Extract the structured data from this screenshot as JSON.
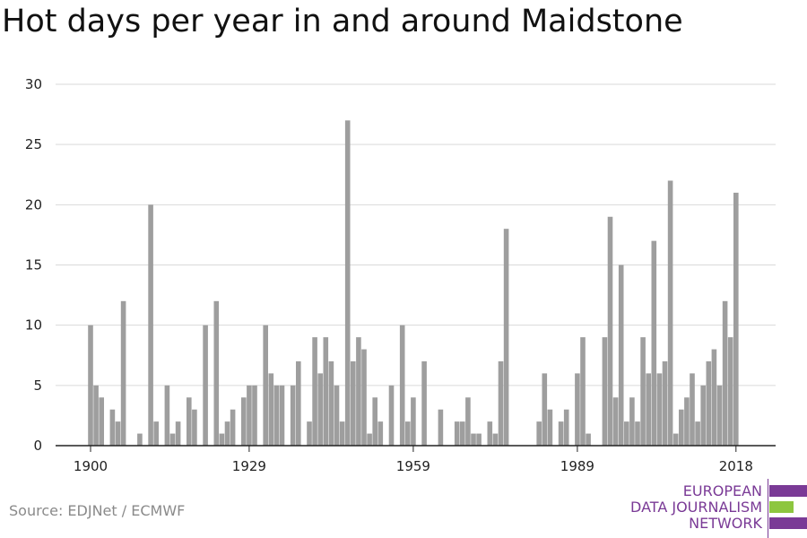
{
  "title": "Hot days per year in and around Maidstone",
  "source": "Source: EDJNet / ECMWF",
  "logo": {
    "lines": [
      "EUROPEAN",
      "DATA JOURNALISM",
      "NETWORK"
    ],
    "colors": {
      "purple": "#7a3a96",
      "green": "#8dc63f"
    }
  },
  "colors": {
    "bar": "#9e9e9e",
    "grid": "#d9d9d9",
    "axis": "#222222"
  },
  "chart_data": {
    "type": "bar",
    "title": "Hot days per year in and around Maidstone",
    "xlabel": "",
    "ylabel": "",
    "ylim": [
      0,
      30
    ],
    "yticks": [
      0,
      5,
      10,
      15,
      20,
      25,
      30
    ],
    "xticks": [
      1900,
      1929,
      1959,
      1989,
      2018
    ],
    "grid": true,
    "x": [
      1900,
      1901,
      1902,
      1903,
      1904,
      1905,
      1906,
      1907,
      1908,
      1909,
      1910,
      1911,
      1912,
      1913,
      1914,
      1915,
      1916,
      1917,
      1918,
      1919,
      1920,
      1921,
      1922,
      1923,
      1924,
      1925,
      1926,
      1927,
      1928,
      1929,
      1930,
      1931,
      1932,
      1933,
      1934,
      1935,
      1936,
      1937,
      1938,
      1939,
      1940,
      1941,
      1942,
      1943,
      1944,
      1945,
      1946,
      1947,
      1948,
      1949,
      1950,
      1951,
      1952,
      1953,
      1954,
      1955,
      1956,
      1957,
      1958,
      1959,
      1960,
      1961,
      1962,
      1963,
      1964,
      1965,
      1966,
      1967,
      1968,
      1969,
      1970,
      1971,
      1972,
      1973,
      1974,
      1975,
      1976,
      1977,
      1978,
      1979,
      1980,
      1981,
      1982,
      1983,
      1984,
      1985,
      1986,
      1987,
      1988,
      1989,
      1990,
      1991,
      1992,
      1993,
      1994,
      1995,
      1996,
      1997,
      1998,
      1999,
      2000,
      2001,
      2002,
      2003,
      2004,
      2005,
      2006,
      2007,
      2008,
      2009,
      2010,
      2011,
      2012,
      2013,
      2014,
      2015,
      2016,
      2017,
      2018
    ],
    "values": [
      10,
      5,
      4,
      0,
      3,
      2,
      12,
      0,
      0,
      1,
      0,
      20,
      2,
      0,
      5,
      1,
      2,
      0,
      4,
      3,
      0,
      10,
      0,
      12,
      1,
      2,
      3,
      0,
      4,
      5,
      5,
      0,
      10,
      6,
      5,
      5,
      0,
      5,
      7,
      0,
      2,
      9,
      6,
      9,
      7,
      5,
      2,
      27,
      7,
      9,
      8,
      1,
      4,
      2,
      0,
      5,
      0,
      10,
      2,
      4,
      0,
      7,
      0,
      0,
      3,
      0,
      0,
      2,
      2,
      4,
      1,
      1,
      0,
      2,
      1,
      7,
      18,
      0,
      0,
      0,
      0,
      0,
      2,
      6,
      3,
      0,
      2,
      3,
      0,
      6,
      9,
      1,
      0,
      0,
      9,
      19,
      4,
      15,
      2,
      4,
      2,
      9,
      6,
      17,
      6,
      7,
      22,
      1,
      3,
      4,
      6,
      2,
      5,
      7,
      8,
      5,
      12,
      9,
      21
    ]
  }
}
